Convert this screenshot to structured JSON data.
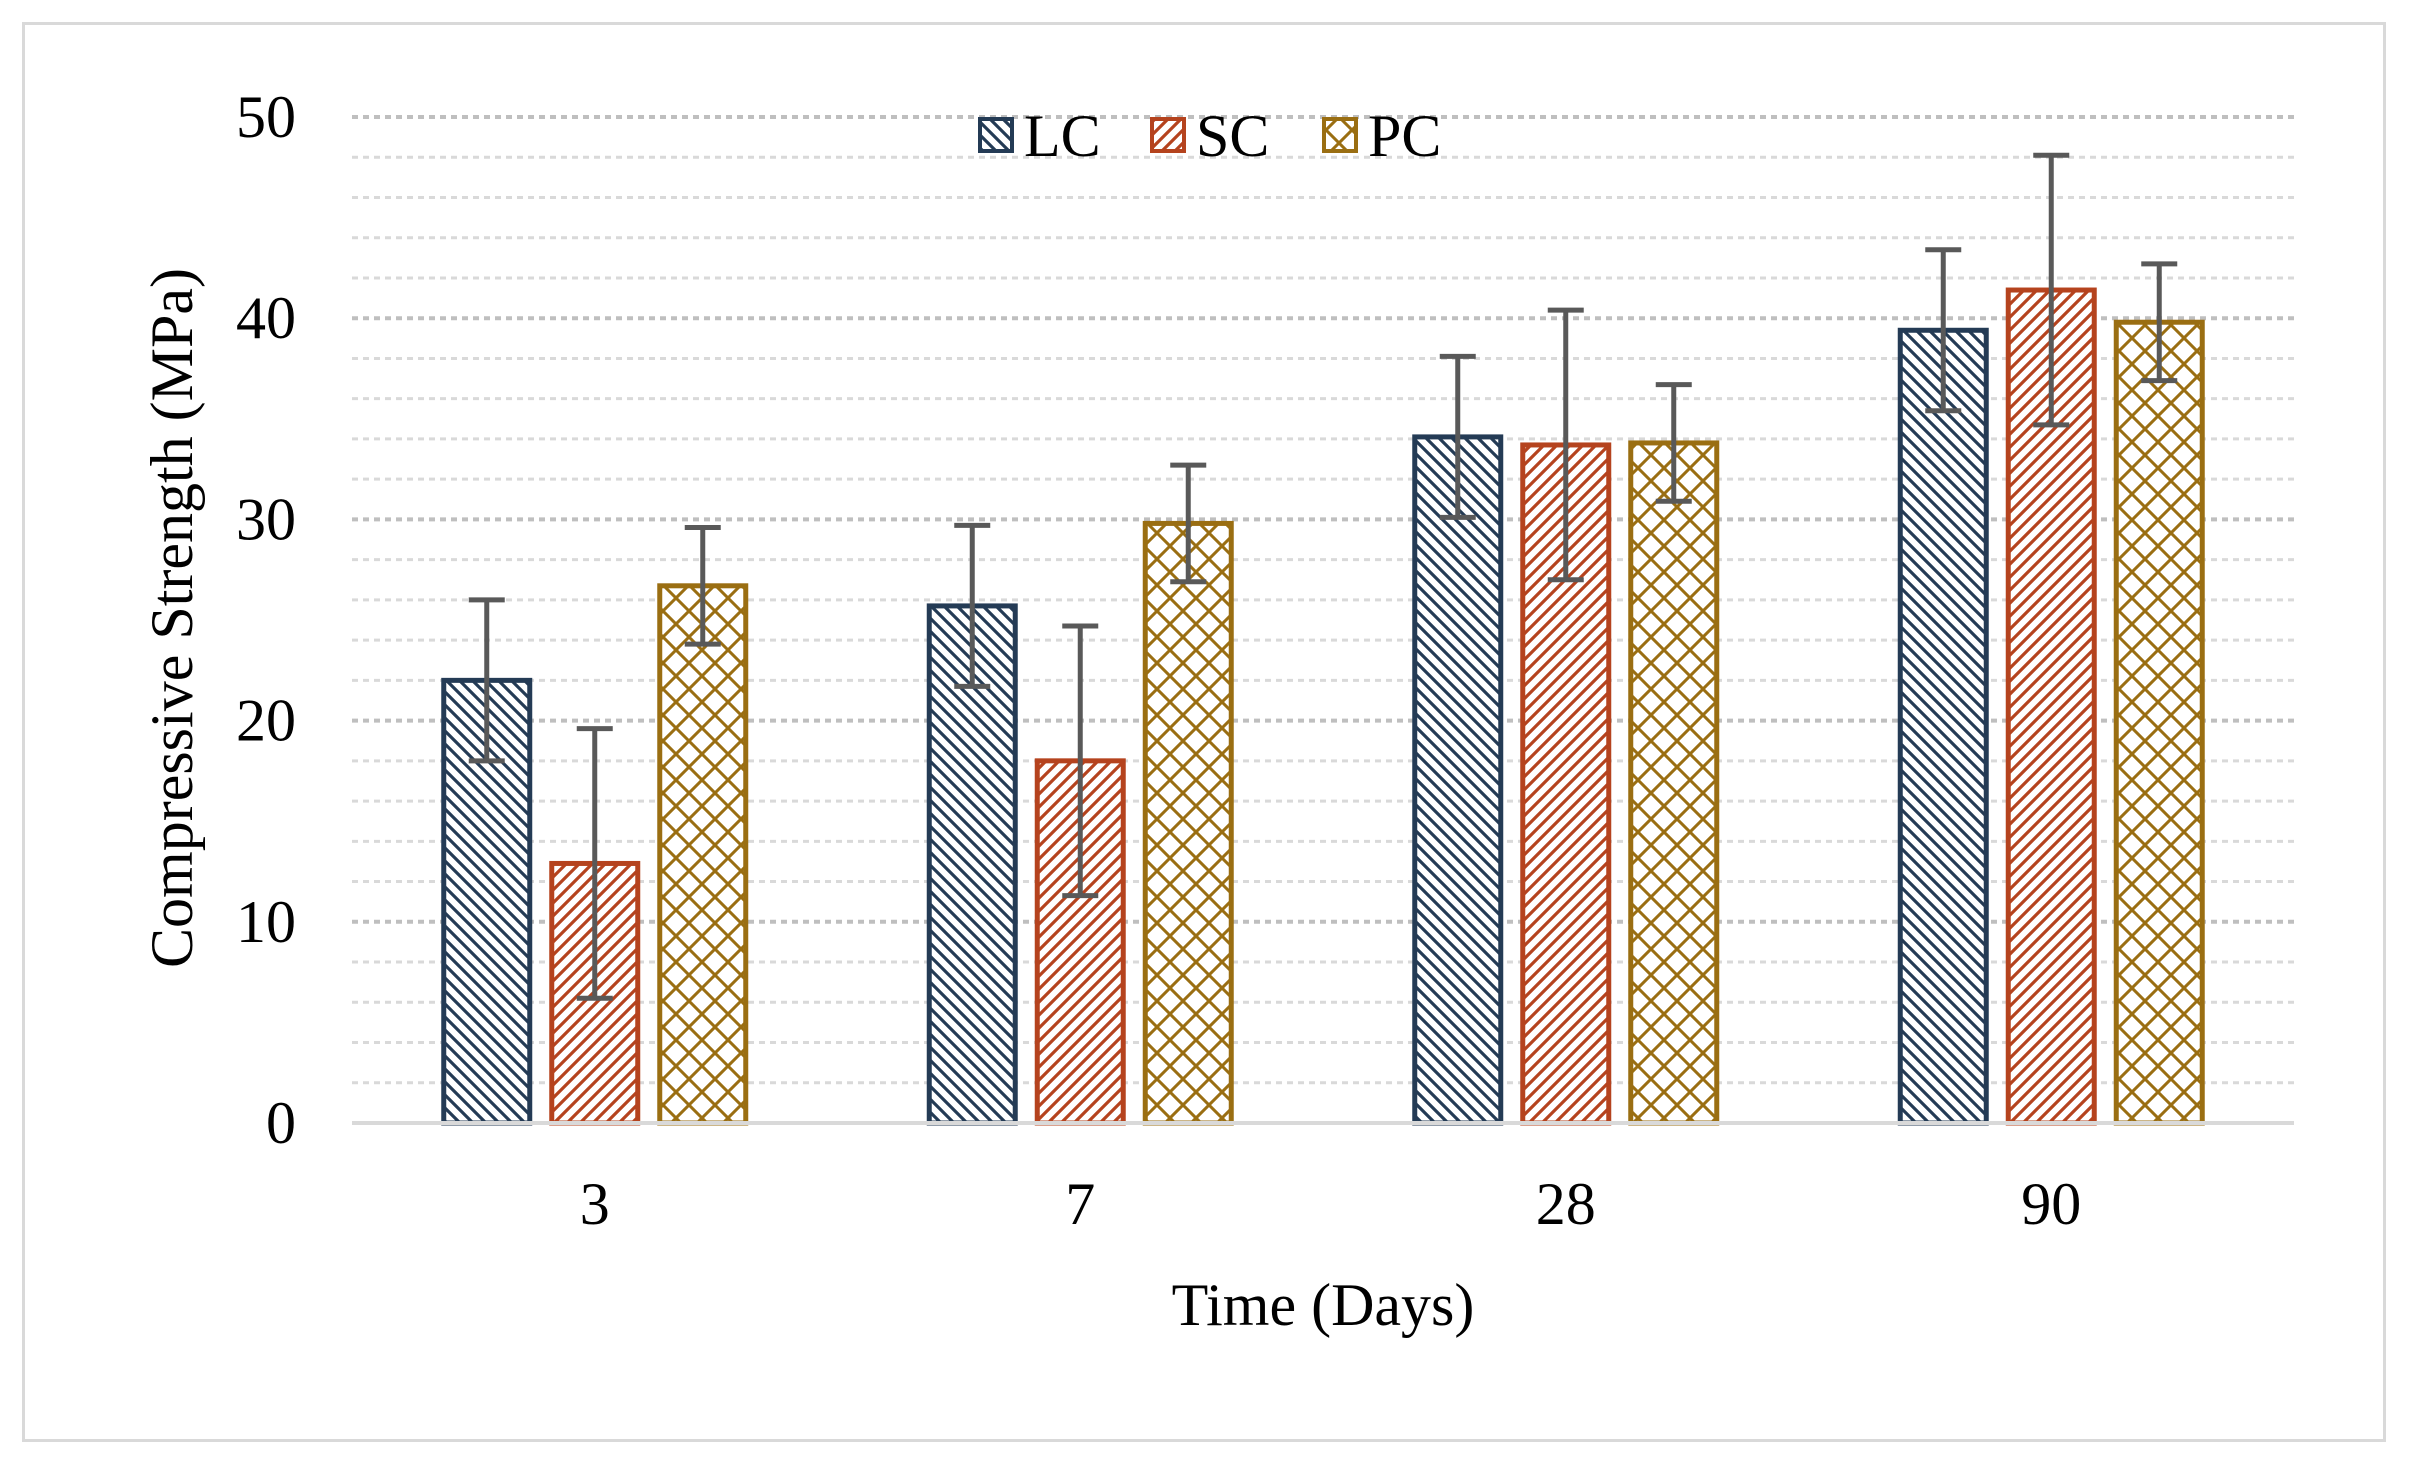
{
  "chart_data": {
    "type": "bar",
    "title": "",
    "xlabel": "Time (Days)",
    "ylabel": "Compressive Strength (MPa)",
    "categories": [
      "3",
      "7",
      "28",
      "90"
    ],
    "ylim": [
      0,
      50
    ],
    "yticks": [
      0,
      10,
      20,
      30,
      40,
      50
    ],
    "grid": "horizontal dotted, major and minor",
    "legend_position": "top-center",
    "series": [
      {
        "name": "LC",
        "color": "#243b55",
        "pattern": "diagonal-down",
        "values": [
          22.0,
          25.7,
          34.1,
          39.4
        ],
        "error": [
          4.0,
          4.0,
          4.0,
          4.0
        ]
      },
      {
        "name": "SC",
        "color": "#b5431e",
        "pattern": "diagonal-up",
        "values": [
          12.9,
          18.0,
          33.7,
          41.4
        ],
        "error": [
          6.7,
          6.7,
          6.7,
          6.7
        ]
      },
      {
        "name": "PC",
        "color": "#9a6e12",
        "pattern": "diamond-grid",
        "values": [
          26.7,
          29.8,
          33.8,
          39.8
        ],
        "error": [
          2.9,
          2.9,
          2.9,
          2.9
        ]
      }
    ]
  }
}
